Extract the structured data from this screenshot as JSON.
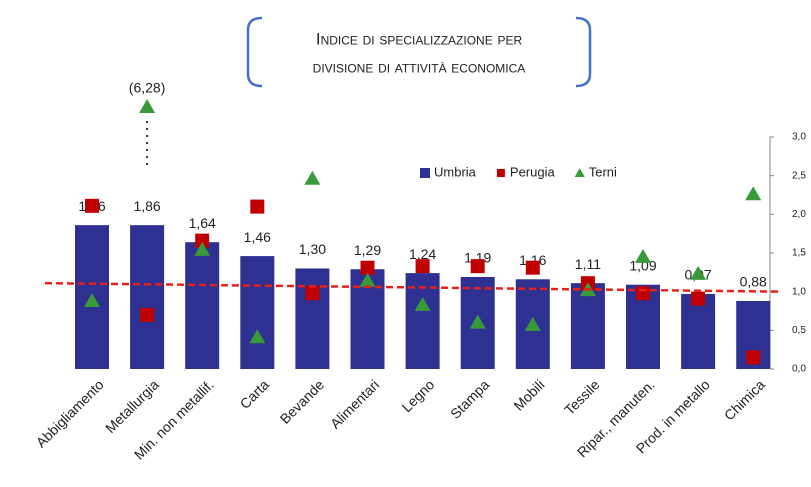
{
  "chart_data": {
    "type": "bar",
    "title": [
      "Indice di specializzazione per",
      "divisione di attività economica"
    ],
    "categories": [
      "Abbigliamento",
      "Metallurgia",
      "Min. non metallif.",
      "Carta",
      "Bevande",
      "Alimentari",
      "Legno",
      "Stampa",
      "Mobili",
      "Tessile",
      "Ripar., manuten.",
      "Prod. in metallo",
      "Chimica"
    ],
    "series": [
      {
        "name": "Umbria",
        "color": "#2e3192",
        "marker": "bar",
        "values": [
          1.86,
          1.86,
          1.64,
          1.46,
          1.3,
          1.29,
          1.24,
          1.19,
          1.16,
          1.11,
          1.09,
          0.97,
          0.88
        ],
        "value_labels": [
          "1,86",
          "1,86",
          "1,64",
          "1,46",
          "1,30",
          "1,29",
          "1,24",
          "1,19",
          "1,16",
          "1,11",
          "1,09",
          "0,97",
          "0,88"
        ]
      },
      {
        "name": "Perugia",
        "color": "#c00000",
        "marker": "square",
        "values": [
          2.11,
          0.7,
          1.66,
          2.1,
          0.98,
          1.31,
          1.33,
          1.33,
          1.31,
          1.11,
          0.98,
          0.91,
          0.15
        ]
      },
      {
        "name": "Terni",
        "color": "#3a9a3a",
        "marker": "triangle",
        "values": [
          0.88,
          6.28,
          1.54,
          0.41,
          2.46,
          1.14,
          0.83,
          0.6,
          0.57,
          1.02,
          1.45,
          1.23,
          2.26
        ],
        "value_labels": [
          null,
          "(6,28)",
          null,
          null,
          null,
          null,
          null,
          null,
          null,
          null,
          null,
          null,
          null
        ]
      }
    ],
    "trend_line": {
      "color": "#e8201c",
      "values": [
        1.11,
        1.0
      ]
    },
    "ylim": [
      0,
      3
    ],
    "yticks": [
      {
        "value": 0,
        "label": "0,0"
      },
      {
        "value": 0.5,
        "label": "0,5"
      },
      {
        "value": 1,
        "label": "1,0"
      },
      {
        "value": 1.5,
        "label": "1,5"
      },
      {
        "value": 2,
        "label": "2,0"
      },
      {
        "value": 2.5,
        "label": "2,5"
      },
      {
        "value": 3,
        "label": "3,0"
      }
    ],
    "legend": "top-right"
  }
}
